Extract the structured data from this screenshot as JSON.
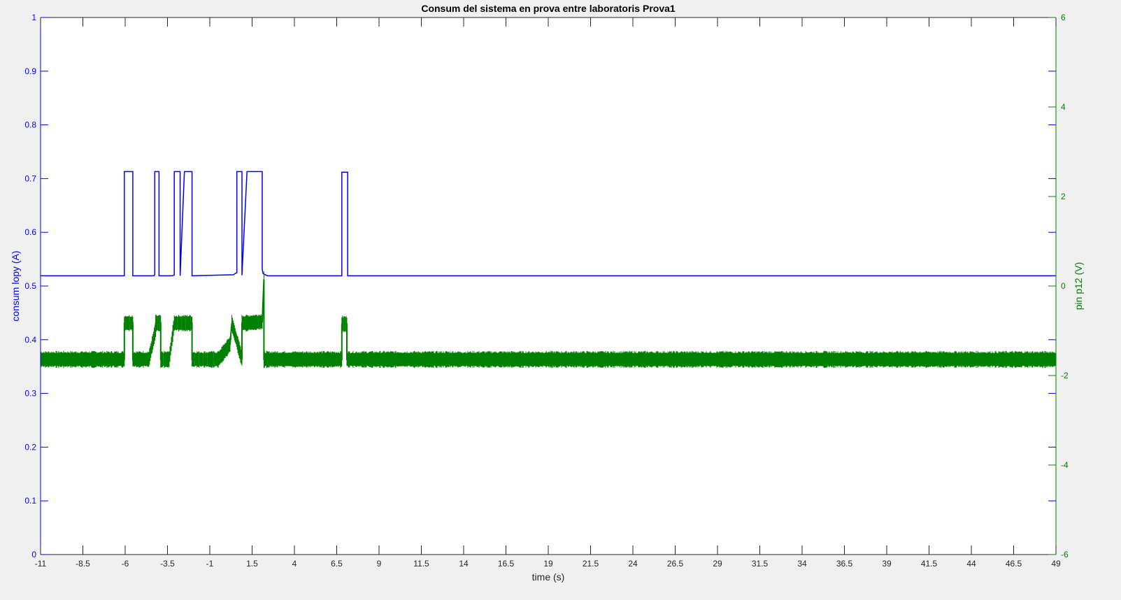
{
  "chart_data": {
    "type": "line",
    "title": "Consum del sistema en prova entre laboratoris Prova1",
    "xlabel": "time (s)",
    "ylabel_left": "consum lopy (A)",
    "ylabel_right": "pin p12 (V)",
    "xlim": [
      -11,
      49
    ],
    "ylim_left": [
      0,
      1
    ],
    "ylim_right": [
      -6,
      6
    ],
    "grid": false,
    "x_ticks": [
      "-11",
      "-8.5",
      "-6",
      "-3.5",
      "-1",
      "1.5",
      "4",
      "6.5",
      "9",
      "11.5",
      "14",
      "16.5",
      "19",
      "21.5",
      "24",
      "26.5",
      "29",
      "31.5",
      "34",
      "36.5",
      "39",
      "41.5",
      "44",
      "46.5",
      "49"
    ],
    "y_ticks_left": [
      "0",
      "0.1",
      "0.2",
      "0.3",
      "0.4",
      "0.5",
      "0.6",
      "0.7",
      "0.8",
      "0.9",
      "1"
    ],
    "y_ticks_right": [
      "-6",
      "-4",
      "-2",
      "0",
      "2",
      "4",
      "6"
    ],
    "colors": {
      "left": "#0000ff",
      "right": "#007f00"
    },
    "series": [
      {
        "axis": "left",
        "color": "#0000ff",
        "baseline": 0.519,
        "x": [
          -11,
          -6.05,
          -6.05,
          -5.55,
          -5.55,
          -4.3,
          -4.25,
          -4.25,
          -4.0,
          -4.0,
          -3.2,
          -3.1,
          -3.1,
          -2.75,
          -2.75,
          -2.5,
          -2.5,
          -2.05,
          -2.05,
          0.4,
          0.5,
          0.6,
          0.6,
          0.9,
          0.9,
          1.2,
          1.2,
          2.1,
          2.1,
          2.15,
          2.4,
          6.8,
          6.8,
          7.15,
          7.15,
          49
        ],
        "y": [
          0.519,
          0.519,
          0.713,
          0.713,
          0.519,
          0.519,
          0.521,
          0.713,
          0.713,
          0.519,
          0.519,
          0.521,
          0.713,
          0.713,
          0.519,
          0.713,
          0.713,
          0.713,
          0.519,
          0.521,
          0.523,
          0.525,
          0.713,
          0.713,
          0.52,
          0.713,
          0.713,
          0.713,
          0.531,
          0.523,
          0.519,
          0.519,
          0.712,
          0.712,
          0.519,
          0.519
        ]
      },
      {
        "axis": "right",
        "color": "#007f00",
        "x": [
          -11,
          -6.05,
          -6.05,
          -5.55,
          -5.55,
          -4.6,
          -4.2,
          -4.2,
          -3.9,
          -3.9,
          -3.4,
          -3.1,
          -3.1,
          -2.05,
          -2.05,
          -1.0,
          -0.5,
          0.2,
          0.3,
          0.3,
          0.9,
          0.9,
          1.15,
          1.15,
          2.1,
          2.2,
          2.2,
          2.35,
          6.8,
          6.8,
          7.1,
          7.1,
          49
        ],
        "y": [
          -1.64,
          -1.64,
          -0.83,
          -0.83,
          -1.64,
          -1.64,
          -0.98,
          -0.83,
          -0.83,
          -1.64,
          -1.64,
          -0.83,
          -0.83,
          -0.83,
          -1.64,
          -1.64,
          -1.64,
          -1.3,
          -0.83,
          -0.83,
          -1.64,
          -0.83,
          -0.83,
          -0.83,
          -0.8,
          0.15,
          -1.64,
          -1.64,
          -1.64,
          -0.85,
          -0.85,
          -1.64,
          -1.64
        ]
      }
    ],
    "annotations": [
      {
        "x": 2.2,
        "y_right": 0.15,
        "label": ""
      }
    ]
  }
}
